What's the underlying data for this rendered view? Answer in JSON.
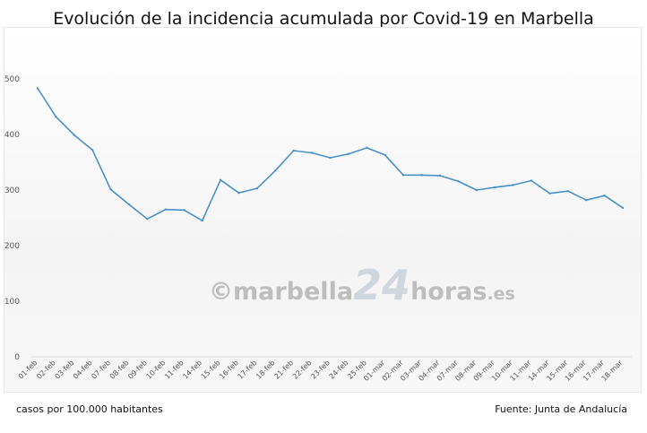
{
  "chart_data": {
    "type": "line",
    "title": "Evolución de la incidencia acumulada por Covid-19 en Marbella",
    "xlabel": "",
    "ylabel": "",
    "ylim": [
      0,
      500
    ],
    "yticks": [
      0,
      100,
      200,
      300,
      400,
      500
    ],
    "grid": false,
    "categories": [
      "01-feb",
      "02-feb",
      "03-feb",
      "04-feb",
      "07-feb",
      "08-feb",
      "09-feb",
      "10-feb",
      "11-feb",
      "14-feb",
      "15-feb",
      "16-feb",
      "17-feb",
      "18-feb",
      "21-feb",
      "22-feb",
      "23-feb",
      "24-feb",
      "25-feb",
      "01-mar",
      "02-mar",
      "03-mar",
      "04-mar",
      "07-mar",
      "08-mar",
      "09-mar",
      "10-mar",
      "11-mar",
      "14-mar",
      "15-mar",
      "16-mar",
      "17-mar",
      "18-mar"
    ],
    "series": [
      {
        "values": [
          483,
          432,
          399,
          372,
          301,
          274,
          248,
          265,
          264,
          245,
          318,
          295,
          303,
          335,
          371,
          367,
          358,
          365,
          376,
          363,
          327,
          327,
          326,
          316,
          300,
          305,
          309,
          317,
          294,
          298,
          282,
          290,
          268
        ],
        "color": "#4a90c8"
      }
    ]
  },
  "watermark": {
    "prefix": "©marbella",
    "number": "24",
    "suffix": "horas",
    "tld": ".es"
  },
  "footer": {
    "left": "casos por 100.000 habitantes",
    "right": "Fuente: Junta de Andalucía"
  }
}
